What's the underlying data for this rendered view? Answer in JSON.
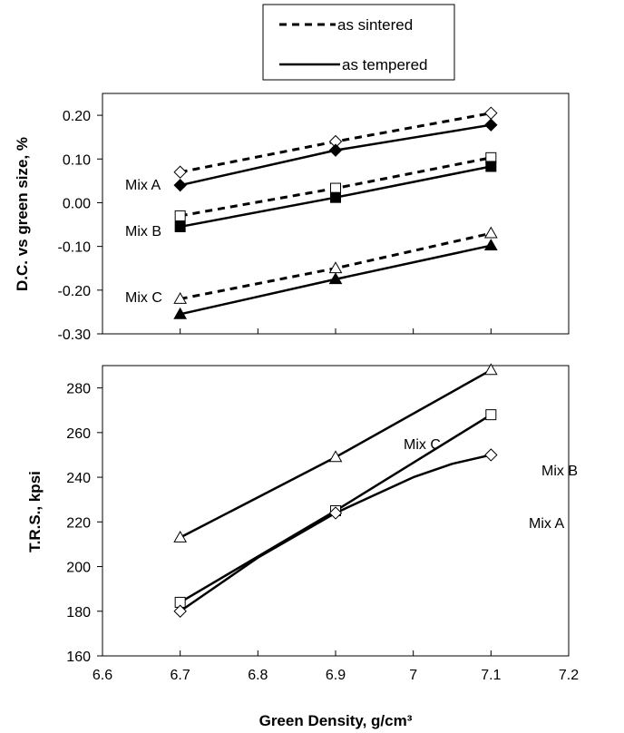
{
  "legend": {
    "items": [
      {
        "label": "as sintered",
        "style": "dashed"
      },
      {
        "label": "as tempered",
        "style": "solid"
      }
    ]
  },
  "chart_data": [
    {
      "type": "line",
      "title": "",
      "xlabel": "",
      "ylabel": "D.C. vs green size, %",
      "xlim": [
        6.6,
        7.2
      ],
      "ylim": [
        -0.3,
        0.25
      ],
      "yticks": [
        "-0.30",
        "-0.20",
        "-0.10",
        "0.00",
        "0.10",
        "0.20"
      ],
      "x": [
        6.7,
        6.9,
        7.1
      ],
      "series": [
        {
          "name": "Mix A",
          "condition": "as sintered",
          "marker": "open-diamond",
          "values": [
            0.07,
            0.14,
            0.205
          ]
        },
        {
          "name": "Mix A",
          "condition": "as tempered",
          "marker": "filled-diamond",
          "values": [
            0.04,
            0.12,
            0.178
          ]
        },
        {
          "name": "Mix B",
          "condition": "as sintered",
          "marker": "open-square",
          "values": [
            -0.03,
            0.033,
            0.103
          ]
        },
        {
          "name": "Mix B",
          "condition": "as tempered",
          "marker": "filled-square",
          "values": [
            -0.055,
            0.012,
            0.083
          ]
        },
        {
          "name": "Mix C",
          "condition": "as sintered",
          "marker": "open-triangle",
          "values": [
            -0.22,
            -0.15,
            -0.07
          ]
        },
        {
          "name": "Mix C",
          "condition": "as tempered",
          "marker": "filled-triangle",
          "values": [
            -0.255,
            -0.175,
            -0.098
          ]
        }
      ],
      "annotations": [
        "Mix A",
        "Mix B",
        "Mix C"
      ],
      "grid": false
    },
    {
      "type": "line",
      "title": "",
      "xlabel": "Green Density, g/cm³",
      "ylabel": "T.R.S., kpsi",
      "xlim": [
        6.6,
        7.2
      ],
      "ylim": [
        160,
        290
      ],
      "xticks": [
        "6.6",
        "6.7",
        "6.8",
        "6.9",
        "7",
        "7.1",
        "7.2"
      ],
      "yticks": [
        "160",
        "180",
        "200",
        "220",
        "240",
        "260",
        "280"
      ],
      "series": [
        {
          "name": "Mix C",
          "marker": "open-triangle",
          "x": [
            6.7,
            6.9,
            7.1
          ],
          "values": [
            213,
            249,
            288
          ]
        },
        {
          "name": "Mix B",
          "marker": "open-square",
          "x": [
            6.7,
            6.9,
            7.1
          ],
          "values": [
            184,
            225,
            268
          ]
        },
        {
          "name": "Mix A",
          "marker": "open-diamond",
          "x": [
            6.7,
            6.9,
            7.1
          ],
          "values": [
            180,
            224,
            250
          ],
          "curve": [
            [
              6.7,
              180
            ],
            [
              6.75,
              192
            ],
            [
              6.8,
              204
            ],
            [
              6.85,
              214
            ],
            [
              6.9,
              224
            ],
            [
              6.95,
              232
            ],
            [
              7.0,
              240
            ],
            [
              7.05,
              246
            ],
            [
              7.1,
              250
            ]
          ]
        }
      ],
      "annotations": [
        "Mix C",
        "Mix B",
        "Mix A"
      ],
      "grid": false
    }
  ]
}
